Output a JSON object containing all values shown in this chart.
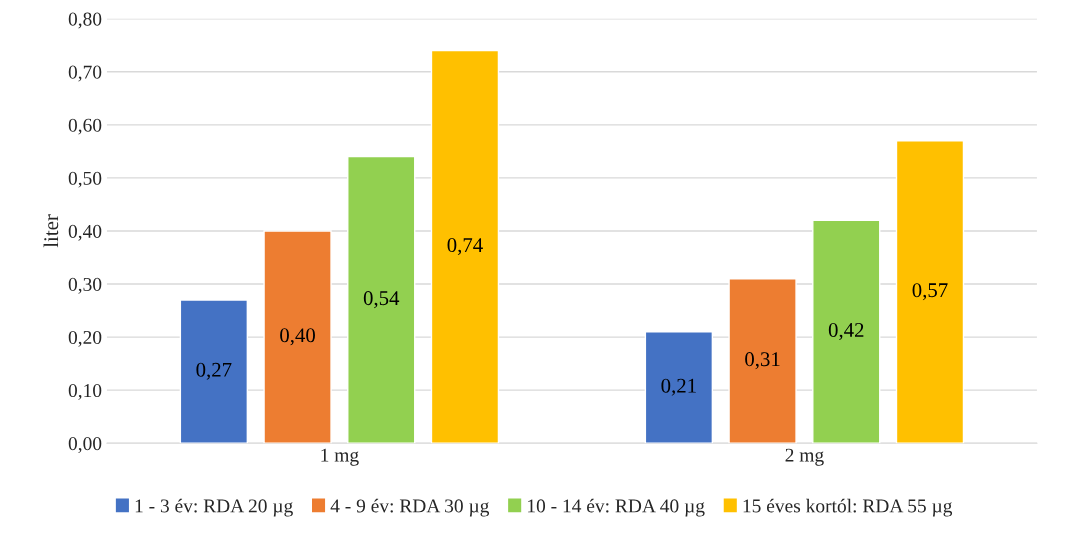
{
  "chart_data": {
    "type": "bar",
    "ylabel": "liter",
    "categories": [
      "1 mg",
      "2 mg"
    ],
    "series": [
      {
        "name": "1 - 3 év: RDA 20 µg",
        "color": "#4472c4",
        "values": [
          0.27,
          0.21
        ],
        "value_labels": [
          "0,27",
          "0,21"
        ]
      },
      {
        "name": "4 - 9 év: RDA 30 µg",
        "color": "#ed7d31",
        "values": [
          0.4,
          0.31
        ],
        "value_labels": [
          "0,40",
          "0,31"
        ]
      },
      {
        "name": "10 - 14 év: RDA 40 µg",
        "color": "#92d050",
        "values": [
          0.54,
          0.42
        ],
        "value_labels": [
          "0,54",
          "0,42"
        ]
      },
      {
        "name": "15 éves kortól: RDA 55 µg",
        "color": "#ffc000",
        "values": [
          0.74,
          0.57
        ],
        "value_labels": [
          "0,74",
          "0,57"
        ]
      }
    ],
    "ylim": [
      0,
      0.8
    ],
    "yticks": [
      {
        "value": 0,
        "label": "0,00"
      },
      {
        "value": 0.1,
        "label": "0,10"
      },
      {
        "value": 0.2,
        "label": "0,20"
      },
      {
        "value": 0.3,
        "label": "0,30"
      },
      {
        "value": 0.4,
        "label": "0,40"
      },
      {
        "value": 0.5,
        "label": "0,50"
      },
      {
        "value": 0.6,
        "label": "0,60"
      },
      {
        "value": 0.7,
        "label": "0,70"
      },
      {
        "value": 0.8,
        "label": "0,80"
      }
    ],
    "grid": "y",
    "legend": "bottom"
  }
}
